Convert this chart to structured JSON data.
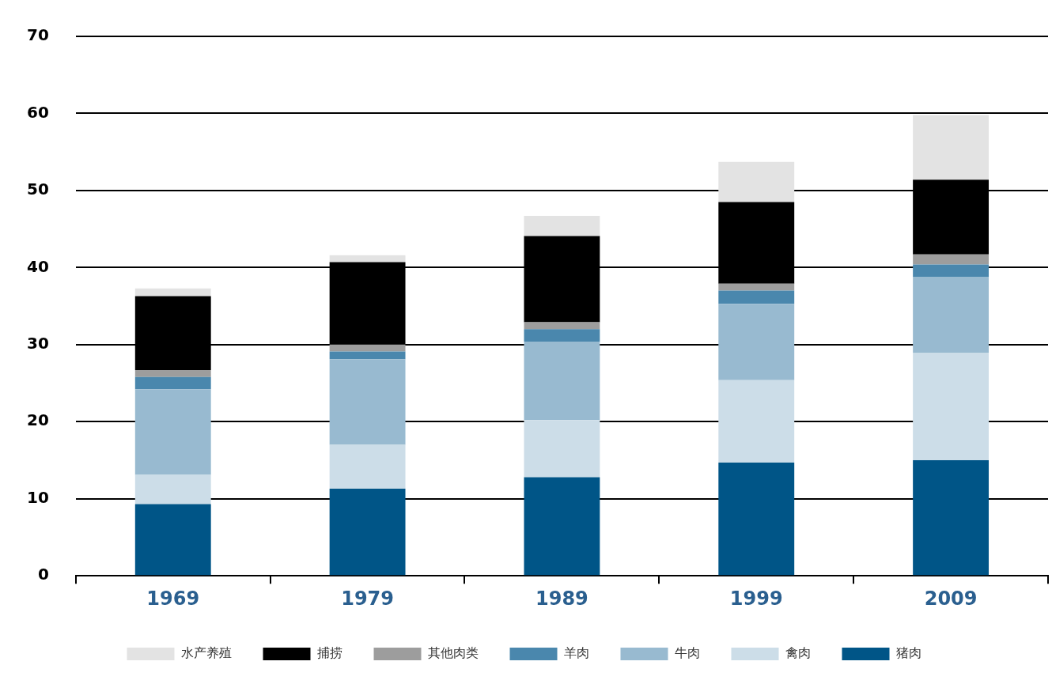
{
  "chart_data": {
    "type": "bar",
    "stacked": true,
    "categories": [
      "1969",
      "1979",
      "1989",
      "1999",
      "2009"
    ],
    "series": [
      {
        "name": "猪肉",
        "color": "#005587",
        "values": [
          9.3,
          11.3,
          12.8,
          14.7,
          15.0
        ]
      },
      {
        "name": "禽肉",
        "color": "#ccdde8",
        "values": [
          3.8,
          5.7,
          7.4,
          10.7,
          13.9
        ]
      },
      {
        "name": "牛肉",
        "color": "#98bad0",
        "values": [
          11.1,
          11.1,
          10.2,
          9.9,
          9.9
        ]
      },
      {
        "name": "羊肉",
        "color": "#4a87ad",
        "values": [
          1.6,
          1.0,
          1.6,
          1.7,
          1.6
        ]
      },
      {
        "name": "其他肉类",
        "color": "#9d9d9d",
        "values": [
          0.9,
          0.9,
          0.9,
          0.9,
          1.3
        ]
      },
      {
        "name": "捕捞",
        "color": "#000000",
        "values": [
          9.6,
          10.7,
          11.2,
          10.6,
          9.7
        ]
      },
      {
        "name": "水产养殖",
        "color": "#e3e3e3",
        "values": [
          1.0,
          0.9,
          2.6,
          5.2,
          8.4
        ]
      }
    ],
    "ylim": [
      0,
      70
    ],
    "yticks": [
      0,
      10,
      20,
      30,
      40,
      50,
      60,
      70
    ],
    "grid": "y",
    "legend": "bottom"
  }
}
